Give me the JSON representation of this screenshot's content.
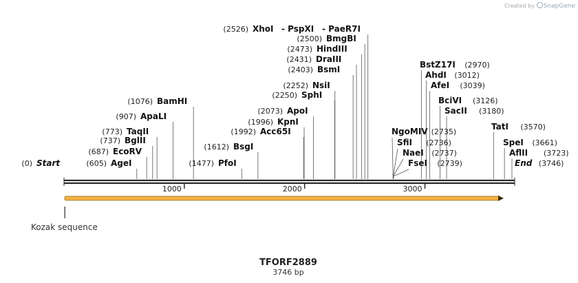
{
  "credit": {
    "prefix": "Created by",
    "brand": "SnapGene"
  },
  "plasmid": {
    "name": "TFORF2889",
    "length_label": "3746 bp",
    "length": 3746
  },
  "axis_ticks": [
    1000,
    2000,
    3000
  ],
  "feature": {
    "name": "Kozak sequence",
    "start": 1,
    "end": 3746,
    "color": "#f5b041"
  },
  "sites": [
    {
      "name": "Start",
      "pos_label": "(0)",
      "pos": 0,
      "italic": true
    },
    {
      "name": "AgeI",
      "pos_label": "(605)",
      "pos": 605
    },
    {
      "name": "EcoRV",
      "pos_label": "(687)",
      "pos": 687
    },
    {
      "name": "BglII",
      "pos_label": "(737)",
      "pos": 737
    },
    {
      "name": "TaqII",
      "pos_label": "(773)",
      "pos": 773
    },
    {
      "name": "ApaLI",
      "pos_label": "(907)",
      "pos": 907
    },
    {
      "name": "BamHI",
      "pos_label": "(1076)",
      "pos": 1076
    },
    {
      "name": "PfoI",
      "pos_label": "(1477)",
      "pos": 1477
    },
    {
      "name": "BsgI",
      "pos_label": "(1612)",
      "pos": 1612
    },
    {
      "name": "Acc65I",
      "pos_label": "(1992)",
      "pos": 1992
    },
    {
      "name": "KpnI",
      "pos_label": "(1996)",
      "pos": 1996
    },
    {
      "name": "ApoI",
      "pos_label": "(2073)",
      "pos": 2073
    },
    {
      "name": "SphI",
      "pos_label": "(2250)",
      "pos": 2250
    },
    {
      "name": "NsiI",
      "pos_label": "(2252)",
      "pos": 2252
    },
    {
      "name": "BsmI",
      "pos_label": "(2403)",
      "pos": 2403
    },
    {
      "name": "DraIII",
      "pos_label": "(2431)",
      "pos": 2431
    },
    {
      "name": "HindIII",
      "pos_label": "(2473)",
      "pos": 2473
    },
    {
      "name": "BmgBI",
      "pos_label": "(2500)",
      "pos": 2500
    },
    {
      "name": "XhoI",
      "pos_label": "(2526)",
      "pos": 2526
    },
    {
      "name": "- PspXI",
      "pos_label": "",
      "pos": 2526
    },
    {
      "name": "- PaeR7I",
      "pos_label": "",
      "pos": 2526
    },
    {
      "name": "NgoMIV",
      "pos_label": "(2735)",
      "pos": 2735
    },
    {
      "name": "SfiI",
      "pos_label": "(2736)",
      "pos": 2736
    },
    {
      "name": "NaeI",
      "pos_label": "(2737)",
      "pos": 2737
    },
    {
      "name": "FseI",
      "pos_label": "(2739)",
      "pos": 2739
    },
    {
      "name": "BstZ17I",
      "pos_label": "(2970)",
      "pos": 2970
    },
    {
      "name": "AhdI",
      "pos_label": "(3012)",
      "pos": 3012
    },
    {
      "name": "AfeI",
      "pos_label": "(3039)",
      "pos": 3039
    },
    {
      "name": "BciVI",
      "pos_label": "(3126)",
      "pos": 3126
    },
    {
      "name": "SacII",
      "pos_label": "(3180)",
      "pos": 3180
    },
    {
      "name": "TatI",
      "pos_label": "(3570)",
      "pos": 3570
    },
    {
      "name": "SpeI",
      "pos_label": "(3661)",
      "pos": 3661
    },
    {
      "name": "AflII",
      "pos_label": "(3723)",
      "pos": 3723
    },
    {
      "name": "End",
      "pos_label": "(3746)",
      "pos": 3746,
      "italic": true
    }
  ]
}
